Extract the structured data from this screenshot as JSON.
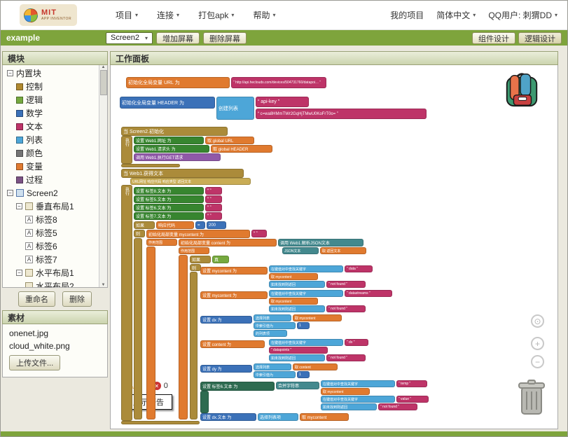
{
  "header": {
    "logo": {
      "mit": "MIT",
      "subtitle": "APP INVENTOR"
    },
    "menus": [
      {
        "label": "项目",
        "chevron": true
      },
      {
        "label": "连接",
        "chevron": true
      },
      {
        "label": "打包apk",
        "chevron": true
      },
      {
        "label": "帮助",
        "chevron": true
      }
    ],
    "right": [
      {
        "label": "我的项目",
        "chevron": false
      },
      {
        "label": "简体中文",
        "chevron": true
      },
      {
        "label": "QQ用户: 刺猬DD",
        "chevron": true
      }
    ]
  },
  "toolbar": {
    "project_name": "example",
    "screen_selector": "Screen2",
    "add_screen": "增加屏幕",
    "remove_screen": "删除屏幕",
    "designer_view": "组件设计",
    "blocks_view": "逻辑设计"
  },
  "sidebar": {
    "blocks_header": "模块",
    "tree": [
      {
        "label": "内置块",
        "depth": 0,
        "toggle": true
      },
      {
        "label": "控制",
        "depth": 1,
        "icon": "swatch",
        "color": "#B0892F"
      },
      {
        "label": "逻辑",
        "depth": 1,
        "icon": "swatch",
        "color": "#76A93F"
      },
      {
        "label": "数学",
        "depth": 1,
        "icon": "swatch",
        "color": "#3B71B8"
      },
      {
        "label": "文本",
        "depth": 1,
        "icon": "swatch",
        "color": "#BE3468"
      },
      {
        "label": "列表",
        "depth": 1,
        "icon": "swatch",
        "color": "#4DA6D8"
      },
      {
        "label": "颜色",
        "depth": 1,
        "icon": "swatch",
        "color": "#757575"
      },
      {
        "label": "变量",
        "depth": 1,
        "icon": "swatch",
        "color": "#E07A2F"
      },
      {
        "label": "过程",
        "depth": 1,
        "icon": "swatch",
        "color": "#7C5385"
      },
      {
        "label": "Screen2",
        "depth": 0,
        "toggle": true,
        "icon": "screen"
      },
      {
        "label": "垂直布局1",
        "depth": 1,
        "toggle": true,
        "icon": "layout"
      },
      {
        "label": "标签8",
        "depth": 2,
        "icon": "label"
      },
      {
        "label": "标签5",
        "depth": 2,
        "icon": "label"
      },
      {
        "label": "标签6",
        "depth": 2,
        "icon": "label"
      },
      {
        "label": "标签7",
        "depth": 2,
        "icon": "label"
      },
      {
        "label": "水平布局1",
        "depth": 1,
        "toggle": true,
        "icon": "layout"
      },
      {
        "label": "水平布局2",
        "depth": 2,
        "icon": "layout"
      }
    ],
    "rename_button": "重命名",
    "delete_button": "删除",
    "media_header": "素材",
    "media": [
      "onenet.jpg",
      "cloud_white.png"
    ],
    "upload_button": "上传文件..."
  },
  "main": {
    "header": "工作面板",
    "warnings": {
      "warning_count": "0",
      "error_count": "0",
      "show_warnings": "显示警告"
    }
  },
  "icons": {
    "chevron_down": "▾",
    "collapse_box": "−",
    "warning": "⚠",
    "close": "✕",
    "zoom_target": "⊙",
    "zoom_in": "+",
    "zoom_out": "−",
    "scroll_up": "▲",
    "scroll_down": "▼",
    "label_glyph": "A"
  },
  "workspace": {
    "palette": {
      "gold": "#AB8B3A",
      "goldlight": "#C9AC55",
      "setter": "#37852F",
      "logic": "#76A93F",
      "math": "#3B71B8",
      "text": "#BE3468",
      "list": "#4DA6D8",
      "var": "#E07A2F",
      "proc": "#9059A8",
      "teal": "#43898E",
      "dgreen": "#2E6B50"
    },
    "blocks": [
      [
        22,
        17,
        148,
        16,
        "var",
        "初始化全局变量 URL 为",
        7
      ],
      [
        172,
        17,
        136,
        16,
        "text",
        "“ http://api.heclouds.com/devices/504731760/datapoi… ”",
        5
      ],
      [
        13,
        45,
        136,
        17,
        "math",
        "初始化全局变量 HEADER 为",
        7
      ],
      [
        151,
        45,
        54,
        33,
        "list",
        "创建列表",
        7
      ],
      [
        207,
        45,
        76,
        15,
        "text",
        "“ api-key ”",
        7
      ],
      [
        207,
        62,
        244,
        15,
        "text",
        "“ c=wa8HMmTWr2GqHjTMwU0KoFrT0o= ”",
        6
      ],
      [
        15,
        88,
        152,
        13,
        "gold",
        "当 Screen2.初始化",
        7
      ],
      [
        15,
        101,
        16,
        40,
        "gold",
        "执行",
        6,
        1
      ],
      [
        15,
        141,
        84,
        5,
        "gold",
        "",
        6
      ],
      [
        33,
        102,
        100,
        11,
        "setter",
        "设置 Web1.网址 为",
        6
      ],
      [
        135,
        102,
        70,
        11,
        "var",
        "取 global URL",
        6
      ],
      [
        33,
        114,
        108,
        11,
        "setter",
        "设置 Web1.请求头 为",
        6
      ],
      [
        143,
        114,
        88,
        11,
        "var",
        "取 global HEADER",
        6
      ],
      [
        33,
        126,
        124,
        11,
        "proc",
        "调用 Web1.执行GET请求",
        6
      ],
      [
        15,
        148,
        175,
        13,
        "gold",
        "当 Web1.获得文本",
        7
      ],
      [
        28,
        161,
        172,
        10,
        "goldlight",
        "URL网址   响应代码   响应类型   返回文本",
        5
      ],
      [
        15,
        171,
        16,
        337,
        "gold",
        "执行",
        6,
        1
      ],
      [
        15,
        508,
        112,
        5,
        "gold",
        "",
        6
      ],
      [
        33,
        174,
        100,
        11,
        "setter",
        "设置 标签8.文本 为",
        6
      ],
      [
        135,
        174,
        24,
        11,
        "text",
        "“ ”",
        6
      ],
      [
        33,
        186,
        100,
        11,
        "setter",
        "设置 标签5.文本 为",
        6
      ],
      [
        135,
        186,
        24,
        11,
        "text",
        "“ ”",
        6
      ],
      [
        33,
        198,
        100,
        11,
        "setter",
        "设置 标签6.文本 为",
        6
      ],
      [
        135,
        198,
        24,
        11,
        "text",
        "“ ”",
        6
      ],
      [
        33,
        210,
        100,
        11,
        "setter",
        "设置 标签7.文本 为",
        6
      ],
      [
        135,
        210,
        24,
        11,
        "text",
        "“ ”",
        6
      ],
      [
        33,
        223,
        30,
        11,
        "gold",
        "如果",
        6
      ],
      [
        65,
        223,
        54,
        11,
        "var",
        "响应代码",
        6
      ],
      [
        121,
        223,
        14,
        11,
        "math",
        "=",
        6
      ],
      [
        137,
        223,
        28,
        11,
        "math",
        "200",
        6
      ],
      [
        33,
        235,
        16,
        11,
        "gold",
        "则",
        6
      ],
      [
        33,
        247,
        12,
        259,
        "gold",
        "",
        6
      ],
      [
        51,
        235,
        148,
        12,
        "var",
        "初始化局部变量 mycontent 为",
        6
      ],
      [
        201,
        235,
        22,
        11,
        "text",
        "“ ”",
        6
      ],
      [
        51,
        248,
        44,
        10,
        "var",
        "作用范围",
        5
      ],
      [
        51,
        259,
        13,
        247,
        "var",
        "",
        6
      ],
      [
        97,
        248,
        140,
        11,
        "var",
        "初始化局部变量 content 为",
        6
      ],
      [
        239,
        248,
        122,
        11,
        "teal",
        "调用 Web1.解析JSON文本",
        6
      ],
      [
        97,
        260,
        44,
        10,
        "var",
        "作用范围",
        5
      ],
      [
        245,
        260,
        52,
        10,
        "teal",
        "JSON文本",
        5
      ],
      [
        299,
        260,
        66,
        10,
        "var",
        "取 返回文本",
        5
      ],
      [
        97,
        271,
        13,
        235,
        "var",
        "",
        6
      ],
      [
        113,
        272,
        30,
        11,
        "gold",
        "如果",
        6
      ],
      [
        145,
        272,
        24,
        11,
        "logic",
        "真",
        6
      ],
      [
        113,
        284,
        16,
        10,
        "gold",
        "则",
        6
      ],
      [
        113,
        295,
        11,
        211,
        "gold",
        "",
        6
      ],
      [
        128,
        288,
        96,
        11,
        "var",
        "设置 mycontent 为",
        6
      ],
      [
        226,
        286,
        106,
        10,
        "list",
        "在键值对中查找关键字",
        5
      ],
      [
        334,
        286,
        40,
        10,
        "text",
        "“ data ”",
        5
      ],
      [
        226,
        297,
        70,
        10,
        "var",
        "取 mycontent",
        5
      ],
      [
        226,
        308,
        80,
        10,
        "list",
        "如未找到则返回",
        5
      ],
      [
        308,
        308,
        56,
        10,
        "text",
        "“ not found ”",
        5
      ],
      [
        128,
        323,
        96,
        11,
        "var",
        "设置 mycontent 为",
        6
      ],
      [
        226,
        321,
        106,
        10,
        "list",
        "在键值对中查找关键字",
        5
      ],
      [
        334,
        321,
        68,
        10,
        "text",
        "“ datastreams ”",
        5
      ],
      [
        226,
        332,
        70,
        10,
        "var",
        "取 mycontent",
        5
      ],
      [
        226,
        343,
        80,
        10,
        "list",
        "如未找到则返回",
        5
      ],
      [
        308,
        343,
        56,
        10,
        "text",
        "“ not found ”",
        5
      ],
      [
        128,
        358,
        74,
        11,
        "math",
        "设置 dx 为",
        6
      ],
      [
        204,
        356,
        54,
        10,
        "list",
        "选择列表",
        5
      ],
      [
        260,
        356,
        70,
        10,
        "var",
        "取 mycontent",
        5
      ],
      [
        204,
        367,
        60,
        10,
        "list",
        "中索引值为",
        5
      ],
      [
        266,
        367,
        18,
        10,
        "math",
        "1",
        5
      ],
      [
        204,
        378,
        48,
        10,
        "list",
        "的列表项",
        5
      ],
      [
        128,
        393,
        92,
        11,
        "var",
        "设置 content 为",
        6
      ],
      [
        226,
        391,
        106,
        10,
        "list",
        "在键值对中查找关键字",
        5
      ],
      [
        334,
        391,
        34,
        10,
        "text",
        "“ dx ”",
        5
      ],
      [
        226,
        402,
        84,
        10,
        "text",
        "“ datapoints ”",
        5
      ],
      [
        226,
        413,
        80,
        10,
        "list",
        "如未找到则返回",
        5
      ],
      [
        308,
        413,
        56,
        10,
        "text",
        "“ not found ”",
        5
      ],
      [
        128,
        428,
        74,
        11,
        "math",
        "设置 dy 为",
        6
      ],
      [
        204,
        426,
        54,
        10,
        "list",
        "选择列表",
        5
      ],
      [
        260,
        426,
        64,
        10,
        "var",
        "取 content",
        5
      ],
      [
        204,
        437,
        60,
        10,
        "list",
        "中索引值为",
        5
      ],
      [
        266,
        437,
        18,
        10,
        "math",
        "1",
        5
      ],
      [
        128,
        452,
        106,
        13,
        "dgreen",
        "设置 标签6.文本 为",
        6
      ],
      [
        128,
        465,
        12,
        32,
        "dgreen",
        "",
        6
      ],
      [
        236,
        452,
        62,
        11,
        "teal",
        "合并字符串",
        6
      ],
      [
        300,
        450,
        106,
        10,
        "list",
        "在键值对中查找关键字",
        5
      ],
      [
        408,
        450,
        44,
        10,
        "text",
        "“ temp ”",
        5
      ],
      [
        300,
        461,
        70,
        10,
        "var",
        "取 mycontent",
        5
      ],
      [
        300,
        472,
        106,
        10,
        "list",
        "在键值对中查找关键字",
        5
      ],
      [
        408,
        472,
        46,
        10,
        "text",
        "“ value ”",
        5
      ],
      [
        300,
        483,
        80,
        10,
        "list",
        "如未找到则返回",
        5
      ],
      [
        382,
        483,
        56,
        10,
        "text",
        "“ not found ”",
        5
      ],
      [
        128,
        497,
        80,
        11,
        "math",
        "设置 dx.文本 为",
        6
      ],
      [
        210,
        497,
        58,
        11,
        "list",
        "选择列表项",
        6
      ],
      [
        270,
        497,
        70,
        11,
        "var",
        "取 mycontent",
        6
      ]
    ]
  }
}
